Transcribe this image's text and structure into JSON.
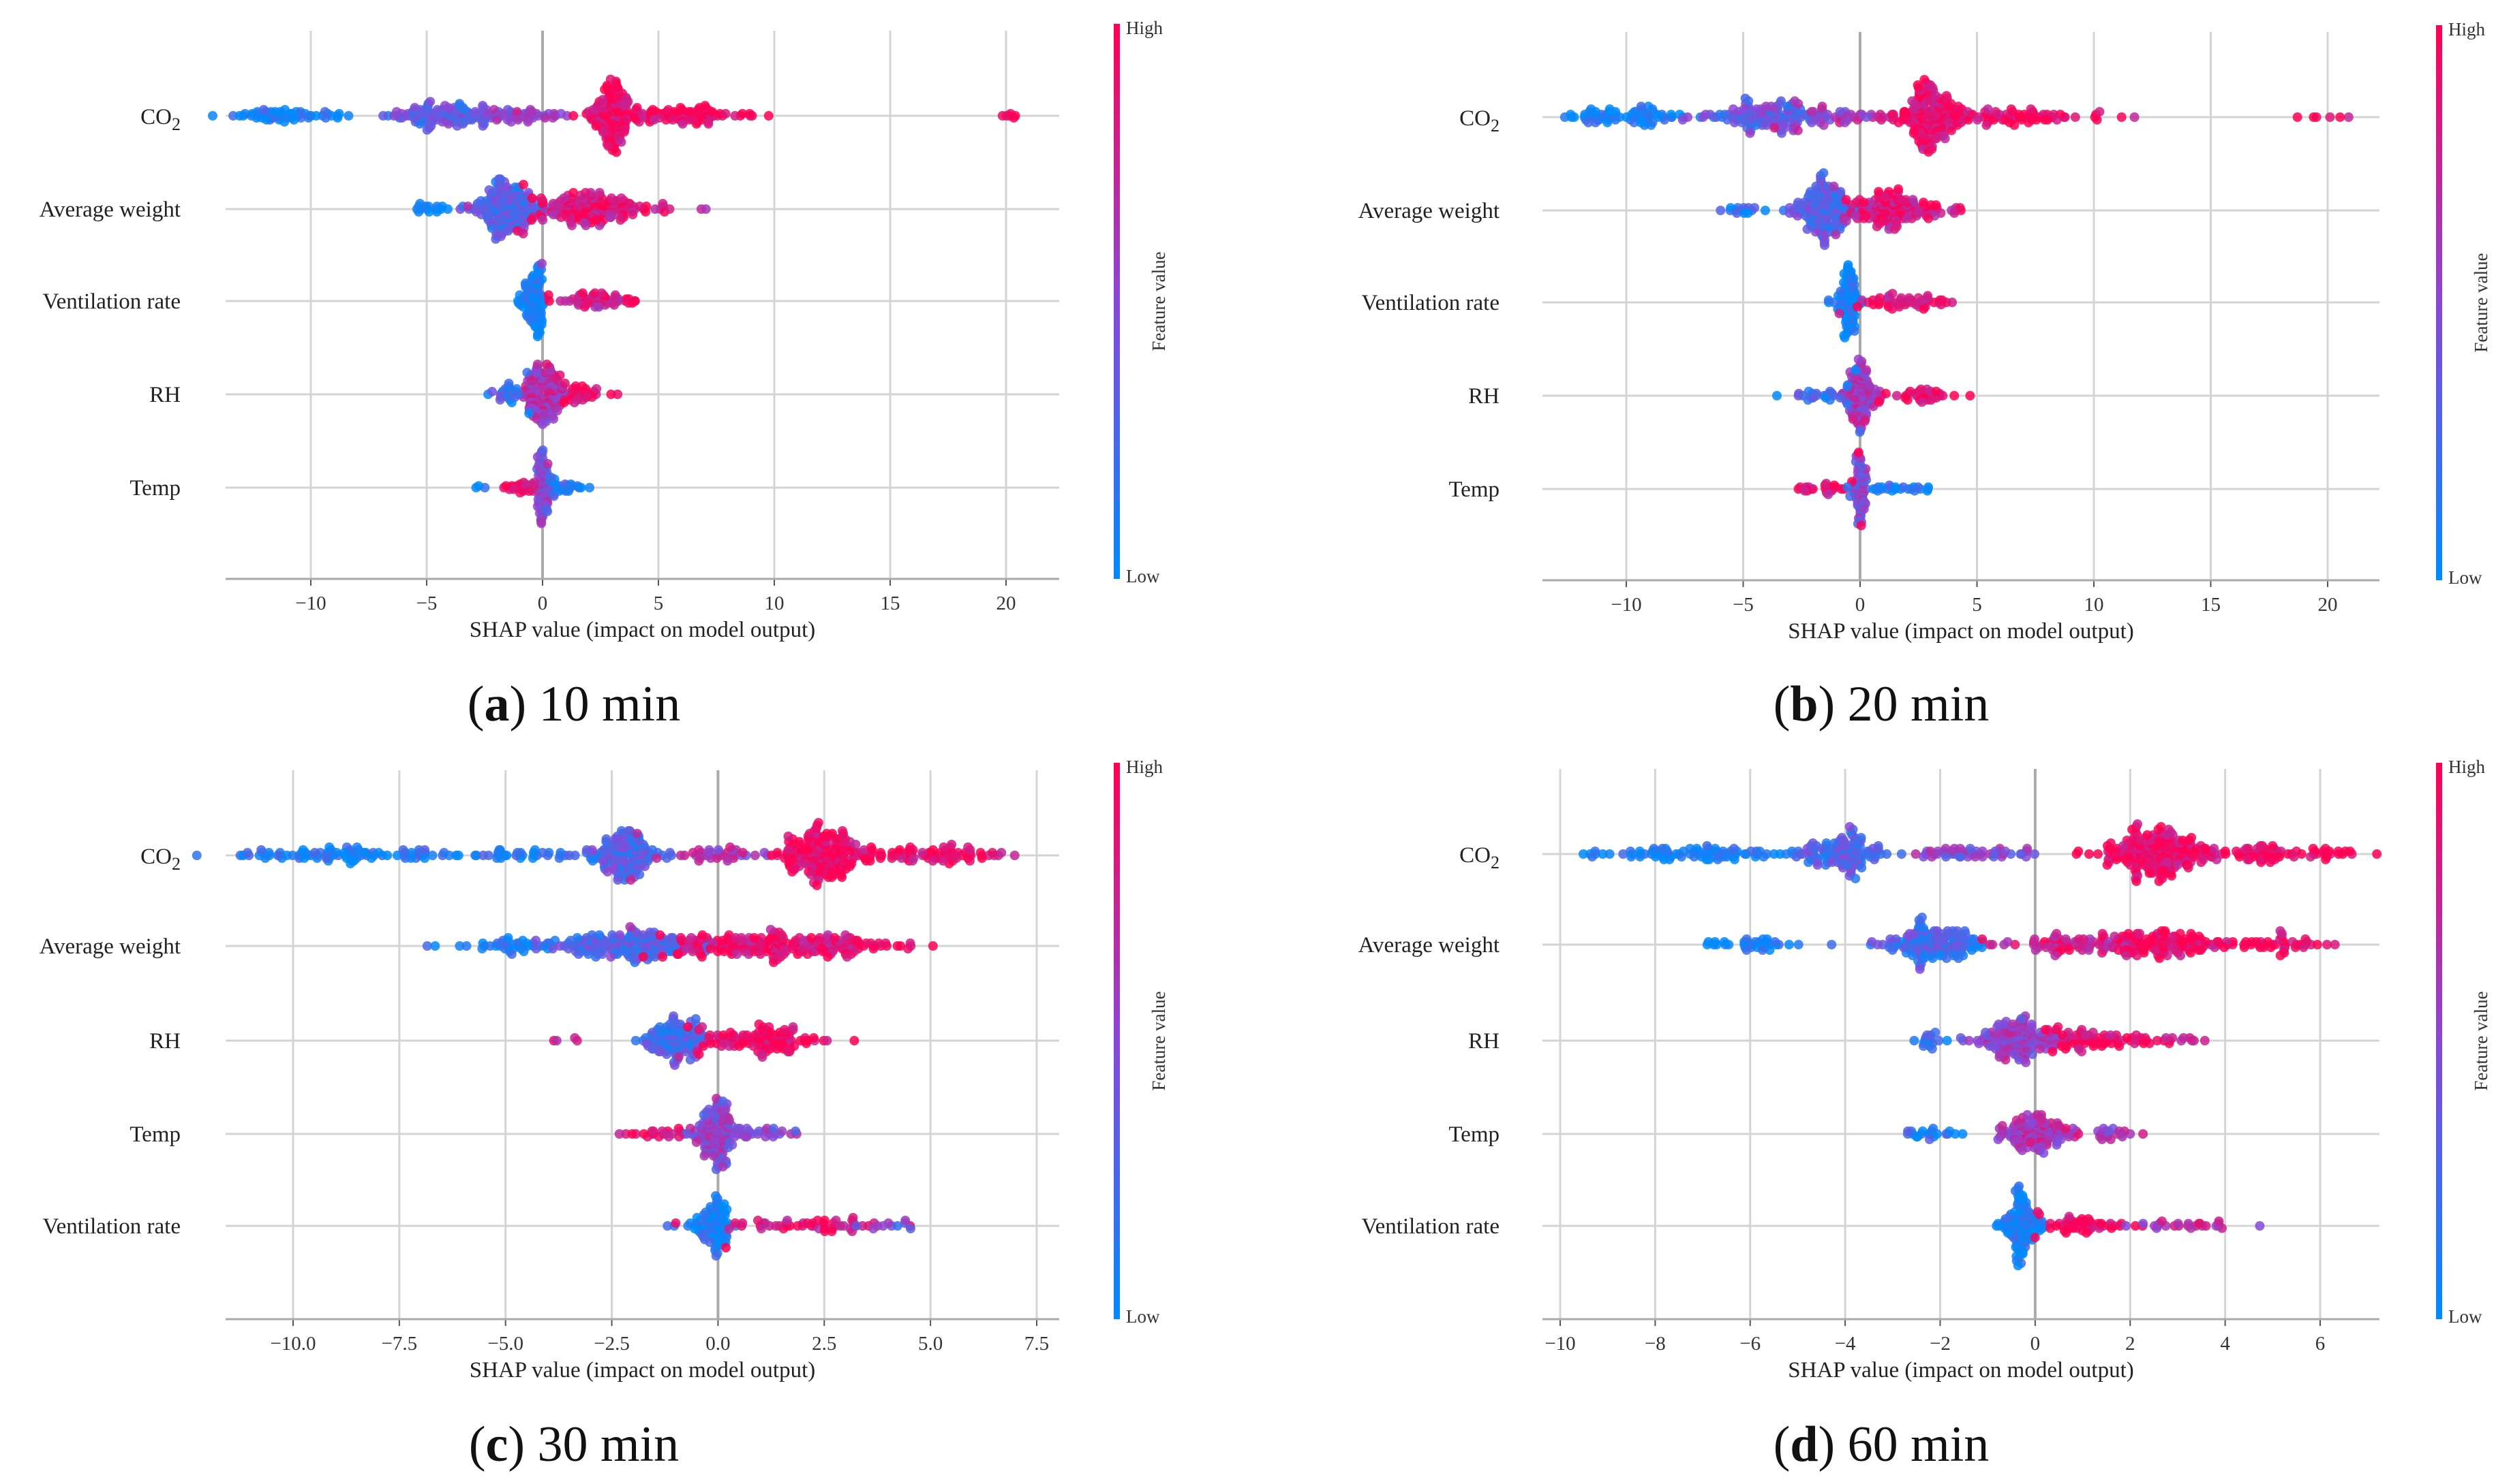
{
  "colors": {
    "low": "#008afb",
    "mid": "#8a47d6",
    "high": "#ff0052",
    "grid": "#cccccc"
  },
  "chart_data": [
    {
      "type": "scatter",
      "subtype": "beeswarm",
      "caption_letter": "a",
      "caption_text": " 10 min",
      "xlabel": "SHAP value (impact on model output)",
      "xlim": [
        -13.5,
        22.5
      ],
      "ticks": [
        -10,
        -5,
        0,
        5,
        10,
        15,
        20
      ],
      "tick_labels": [
        "−10",
        "−5",
        "0",
        "5",
        "10",
        "15",
        "20"
      ],
      "colorbar": {
        "title": "Feature value",
        "high": "High",
        "low": "Low"
      },
      "features": [
        {
          "name": "CO2",
          "clusters": [
            [
              -11,
              1.2,
              60,
              0.05
            ],
            [
              -4,
              1.2,
              120,
              0.35
            ],
            [
              -1,
              1,
              40,
              0.55
            ],
            [
              3,
              0.6,
              160,
              0.92
            ],
            [
              6.5,
              1.3,
              80,
              0.95
            ],
            [
              20.2,
              0.3,
              6,
              0.95
            ]
          ]
        },
        {
          "name": "Average weight",
          "clusters": [
            [
              -5,
              0.4,
              15,
              0.1
            ],
            [
              -1.5,
              0.8,
              150,
              0.3
            ],
            [
              2,
              1.5,
              150,
              0.85
            ]
          ]
        },
        {
          "name": "Ventilation rate",
          "clusters": [
            [
              -0.3,
              0.2,
              80,
              0.05
            ],
            [
              -0.8,
              0.3,
              15,
              0.05
            ],
            [
              2,
              1.2,
              60,
              0.8
            ]
          ]
        },
        {
          "name": "RH",
          "clusters": [
            [
              0,
              0.4,
              120,
              0.65
            ],
            [
              -1.5,
              0.6,
              20,
              0.2
            ],
            [
              1.5,
              0.6,
              30,
              0.95
            ]
          ]
        },
        {
          "name": "Temp",
          "clusters": [
            [
              0,
              0.15,
              80,
              0.5
            ],
            [
              -1,
              0.4,
              25,
              0.9
            ],
            [
              1,
              0.5,
              25,
              0.15
            ],
            [
              -2.8,
              0.1,
              3,
              0.1
            ]
          ]
        }
      ]
    },
    {
      "type": "scatter",
      "subtype": "beeswarm",
      "caption_letter": "b",
      "caption_text": " 20 min",
      "xlabel": "SHAP value (impact on model output)",
      "xlim": [
        -13.5,
        22.5
      ],
      "ticks": [
        -10,
        -5,
        0,
        5,
        10,
        15,
        20
      ],
      "tick_labels": [
        "−10",
        "−5",
        "0",
        "5",
        "10",
        "15",
        "20"
      ],
      "colorbar": {
        "title": "Feature value",
        "high": "High",
        "low": "Low"
      },
      "features": [
        {
          "name": "CO2",
          "clusters": [
            [
              -10,
              1.3,
              70,
              0.05
            ],
            [
              -4,
              1.2,
              120,
              0.35
            ],
            [
              -1,
              1,
              40,
              0.6
            ],
            [
              3,
              0.7,
              160,
              0.93
            ],
            [
              7,
              1.5,
              70,
              0.95
            ],
            [
              19.5,
              0.6,
              6,
              0.95
            ]
          ]
        },
        {
          "name": "Average weight",
          "clusters": [
            [
              -5,
              0.5,
              15,
              0.1
            ],
            [
              -1.5,
              0.7,
              140,
              0.3
            ],
            [
              1.5,
              1.2,
              130,
              0.85
            ]
          ]
        },
        {
          "name": "Ventilation rate",
          "clusters": [
            [
              -0.4,
              0.2,
              70,
              0.05
            ],
            [
              -1,
              0.2,
              10,
              0.05
            ],
            [
              2,
              1.1,
              50,
              0.85
            ]
          ]
        },
        {
          "name": "RH",
          "clusters": [
            [
              0,
              0.4,
              110,
              0.6
            ],
            [
              -1.5,
              0.7,
              25,
              0.2
            ],
            [
              2.5,
              1,
              35,
              0.95
            ]
          ]
        },
        {
          "name": "Temp",
          "clusters": [
            [
              0,
              0.15,
              70,
              0.5
            ],
            [
              -1.5,
              0.6,
              25,
              0.9
            ],
            [
              1.5,
              0.7,
              25,
              0.1
            ]
          ]
        }
      ]
    },
    {
      "type": "scatter",
      "subtype": "beeswarm",
      "caption_letter": "c",
      "caption_text": " 30 min",
      "xlabel": "SHAP value (impact on model output)",
      "xlim": [
        -12,
        8.2
      ],
      "ticks": [
        -10,
        -7.5,
        -5,
        -2.5,
        0,
        2.5,
        5,
        7.5
      ],
      "tick_labels": [
        "−10.0",
        "−7.5",
        "−5.0",
        "−2.5",
        "0.0",
        "2.5",
        "5.0",
        "7.5"
      ],
      "colorbar": {
        "title": "Feature value",
        "high": "High",
        "low": "Low"
      },
      "features": [
        {
          "name": "CO2",
          "clusters": [
            [
              -9,
              1.2,
              80,
              0.05
            ],
            [
              -5,
              1,
              40,
              0.1
            ],
            [
              -2.2,
              0.4,
              130,
              0.3
            ],
            [
              0,
              0.8,
              40,
              0.6
            ],
            [
              2.5,
              0.5,
              170,
              0.95
            ],
            [
              5,
              1,
              80,
              0.95
            ]
          ]
        },
        {
          "name": "Average weight",
          "clusters": [
            [
              -5,
              0.8,
              40,
              0.08
            ],
            [
              -2,
              0.9,
              160,
              0.3
            ],
            [
              1.5,
              1.4,
              200,
              0.9
            ]
          ]
        },
        {
          "name": "RH",
          "clusters": [
            [
              -1,
              0.4,
              110,
              0.25
            ],
            [
              1,
              0.8,
              110,
              0.95
            ],
            [
              -3.5,
              0.3,
              4,
              0.7
            ]
          ]
        },
        {
          "name": "Temp",
          "clusters": [
            [
              0,
              0.3,
              120,
              0.5
            ],
            [
              -1.5,
              0.4,
              20,
              0.9
            ],
            [
              1.2,
              0.4,
              20,
              0.5
            ]
          ]
        },
        {
          "name": "Ventilation rate",
          "clusters": [
            [
              0,
              0.15,
              60,
              0.05
            ],
            [
              -0.5,
              0.2,
              20,
              0.1
            ],
            [
              2,
              1.2,
              50,
              0.9
            ],
            [
              4,
              0.3,
              10,
              0.4
            ]
          ]
        }
      ]
    },
    {
      "type": "scatter",
      "subtype": "beeswarm",
      "caption_letter": "d",
      "caption_text": " 60 min",
      "xlabel": "SHAP value (impact on model output)",
      "xlim": [
        -10.5,
        7.3
      ],
      "ticks": [
        -10,
        -8,
        -6,
        -4,
        -2,
        0,
        2,
        4,
        6
      ],
      "tick_labels": [
        "−10",
        "−8",
        "−6",
        "−4",
        "−2",
        "0",
        "2",
        "4",
        "6"
      ],
      "colorbar": {
        "title": "Feature value",
        "high": "High",
        "low": "Low"
      },
      "features": [
        {
          "name": "CO2",
          "clusters": [
            [
              -7,
              1,
              80,
              0.05
            ],
            [
              -4,
              0.5,
              110,
              0.3
            ],
            [
              -1.5,
              0.7,
              50,
              0.5
            ],
            [
              2.5,
              0.6,
              190,
              0.95
            ],
            [
              5,
              0.8,
              80,
              0.97
            ],
            [
              -9.5,
              0.2,
              5,
              0.05
            ]
          ]
        },
        {
          "name": "Average weight",
          "clusters": [
            [
              -6,
              0.5,
              35,
              0.05
            ],
            [
              -2.2,
              0.5,
              140,
              0.25
            ],
            [
              1,
              0.9,
              80,
              0.8
            ],
            [
              2.8,
              0.6,
              100,
              0.95
            ],
            [
              5,
              0.6,
              40,
              0.95
            ]
          ]
        },
        {
          "name": "RH",
          "clusters": [
            [
              -2.2,
              0.2,
              15,
              0.1
            ],
            [
              -0.3,
              0.5,
              140,
              0.55
            ],
            [
              1.2,
              0.6,
              60,
              0.95
            ],
            [
              3,
              0.3,
              12,
              0.85
            ]
          ]
        },
        {
          "name": "Temp",
          "clusters": [
            [
              -2.2,
              0.3,
              20,
              0.1
            ],
            [
              0,
              0.4,
              110,
              0.65
            ],
            [
              1.5,
              0.3,
              20,
              0.6
            ]
          ]
        },
        {
          "name": "Ventilation rate",
          "clusters": [
            [
              -0.3,
              0.2,
              110,
              0.05
            ],
            [
              1,
              0.6,
              50,
              0.95
            ],
            [
              3,
              0.6,
              25,
              0.7
            ]
          ]
        }
      ]
    }
  ]
}
